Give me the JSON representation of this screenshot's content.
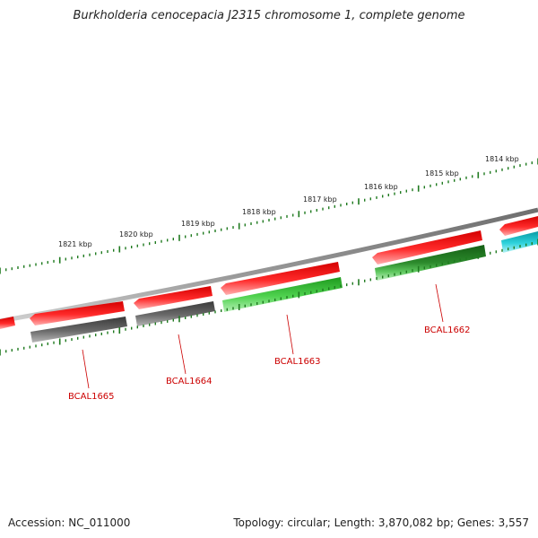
{
  "title": "Burkholderia cenocepacia J2315 chromosome 1, complete genome",
  "footer": {
    "accession": "Accession: NC_011000",
    "topology": "Topology: circular; Length: 3,870,082 bp; Genes: 3,557"
  },
  "colors": {
    "backbone": "#8a8a8a",
    "ticks": "#1f7a1f",
    "gene_label": "#cc0000",
    "red_gene": "#ee1a1a",
    "grey_gene": "#606060",
    "green_gene": "#3cbf3c",
    "darkgreen_gene": "#2f8f2f",
    "cyan_gene": "#22c4cc"
  },
  "scale": {
    "unit": "kbp",
    "tick_labels": [
      {
        "text": "1821 kbp"
      },
      {
        "text": "1820 kbp"
      },
      {
        "text": "1819 kbp"
      },
      {
        "text": "1818 kbp"
      },
      {
        "text": "1817 kbp"
      },
      {
        "text": "1816 kbp"
      },
      {
        "text": "1815 kbp"
      },
      {
        "text": "1814 kbp"
      }
    ]
  },
  "genes": [
    {
      "name": "BCAL1665",
      "track": "inner",
      "color": "grey_gene"
    },
    {
      "name": "BCAL1664",
      "track": "inner",
      "color": "grey_gene"
    },
    {
      "name": "BCAL1663",
      "track": "inner",
      "color": "green_gene"
    },
    {
      "name": "BCAL1662",
      "track": "inner",
      "color": "darkgreen_gene"
    }
  ]
}
